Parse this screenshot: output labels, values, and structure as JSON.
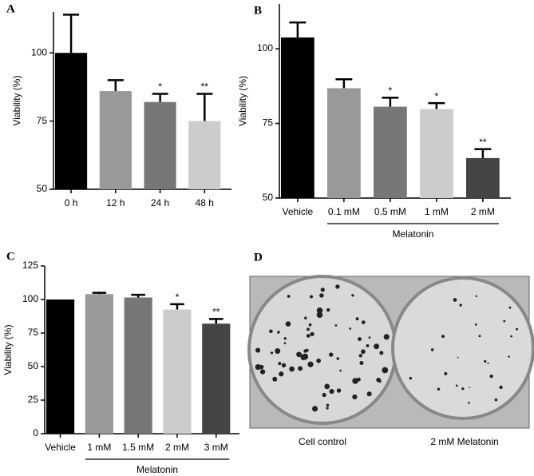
{
  "chart_data": [
    {
      "type": "bar",
      "panel": "A",
      "ylabel": "Viability (%)",
      "categories": [
        "0 h",
        "12 h",
        "24 h",
        "48 h"
      ],
      "values": [
        100,
        86,
        82,
        75
      ],
      "errors": [
        14,
        4,
        3,
        10
      ],
      "colors": [
        "#000000",
        "#999999",
        "#777777",
        "#cccccc"
      ],
      "annotations": [
        null,
        null,
        "*",
        "**"
      ],
      "ylim": [
        50,
        115
      ],
      "yticks": [
        50,
        75,
        100
      ]
    },
    {
      "type": "bar",
      "panel": "B",
      "ylabel": "Viability (%)",
      "categories": [
        "Vehicle",
        "0.1 mM",
        "0.5 mM",
        "1 mM",
        "2 mM"
      ],
      "values": [
        103.8,
        86.8,
        80.6,
        79.8,
        63.4
      ],
      "errors": [
        5,
        3,
        3,
        2,
        3
      ],
      "colors": [
        "#000000",
        "#999999",
        "#777777",
        "#cccccc",
        "#444444"
      ],
      "annotations": [
        null,
        null,
        "*",
        "*",
        "**"
      ],
      "group_label": "Melatonin",
      "ylim": [
        50,
        115
      ],
      "yticks": [
        50,
        75,
        100
      ]
    },
    {
      "type": "bar",
      "panel": "C",
      "ylabel": "Viability (%)",
      "categories": [
        "Vehicle",
        "1 mM",
        "1.5 mM",
        "2 mM",
        "3 mM"
      ],
      "values": [
        100,
        104,
        101.5,
        92.5,
        82
      ],
      "errors": [
        null,
        1,
        2,
        4,
        3.5
      ],
      "colors": [
        "#000000",
        "#999999",
        "#777777",
        "#cccccc",
        "#444444"
      ],
      "annotations": [
        null,
        null,
        null,
        "*",
        "**"
      ],
      "group_label": "Melatonin",
      "ylim": [
        0,
        125
      ],
      "yticks": [
        0,
        25,
        50,
        75,
        100,
        125
      ]
    }
  ],
  "photo": {
    "panel": "D",
    "labels": [
      "Cell control",
      "2 mM Melatonin"
    ]
  }
}
